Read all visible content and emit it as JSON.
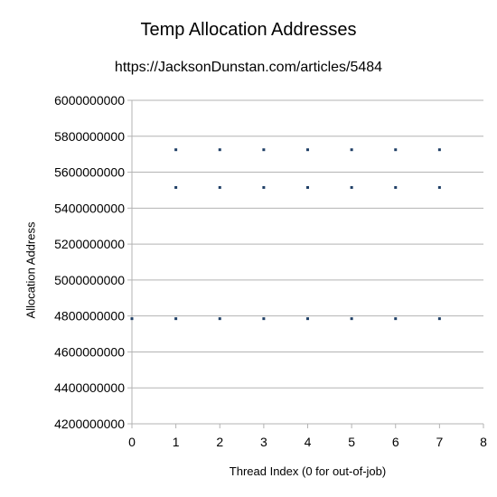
{
  "chart_data": {
    "type": "scatter",
    "title": "Temp Allocation Addresses",
    "subtitle": "https://JacksonDunstan.com/articles/5484",
    "xlabel": "Thread Index (0 for out-of-job)",
    "ylabel": "Allocation Address",
    "xlim": [
      0,
      8
    ],
    "ylim": [
      4200000000,
      6000000000
    ],
    "x_ticks": [
      0,
      1,
      2,
      3,
      4,
      5,
      6,
      7,
      8
    ],
    "y_ticks": [
      4200000000,
      4400000000,
      4600000000,
      4800000000,
      5000000000,
      5200000000,
      5400000000,
      5600000000,
      5800000000,
      6000000000
    ],
    "grid": "horizontal major gridlines",
    "legend": "none",
    "marker_color": "#1f3f66",
    "points": [
      {
        "x": 0,
        "y": 4785000000
      },
      {
        "x": 1,
        "y": 4785000000
      },
      {
        "x": 1,
        "y": 5515000000
      },
      {
        "x": 1,
        "y": 5725000000
      },
      {
        "x": 2,
        "y": 4785000000
      },
      {
        "x": 2,
        "y": 5515000000
      },
      {
        "x": 2,
        "y": 5725000000
      },
      {
        "x": 3,
        "y": 4785000000
      },
      {
        "x": 3,
        "y": 5515000000
      },
      {
        "x": 3,
        "y": 5725000000
      },
      {
        "x": 4,
        "y": 4785000000
      },
      {
        "x": 4,
        "y": 5515000000
      },
      {
        "x": 4,
        "y": 5725000000
      },
      {
        "x": 5,
        "y": 4785000000
      },
      {
        "x": 5,
        "y": 5515000000
      },
      {
        "x": 5,
        "y": 5725000000
      },
      {
        "x": 6,
        "y": 4785000000
      },
      {
        "x": 6,
        "y": 5515000000
      },
      {
        "x": 6,
        "y": 5725000000
      },
      {
        "x": 7,
        "y": 4785000000
      },
      {
        "x": 7,
        "y": 5515000000
      },
      {
        "x": 7,
        "y": 5725000000
      }
    ]
  }
}
